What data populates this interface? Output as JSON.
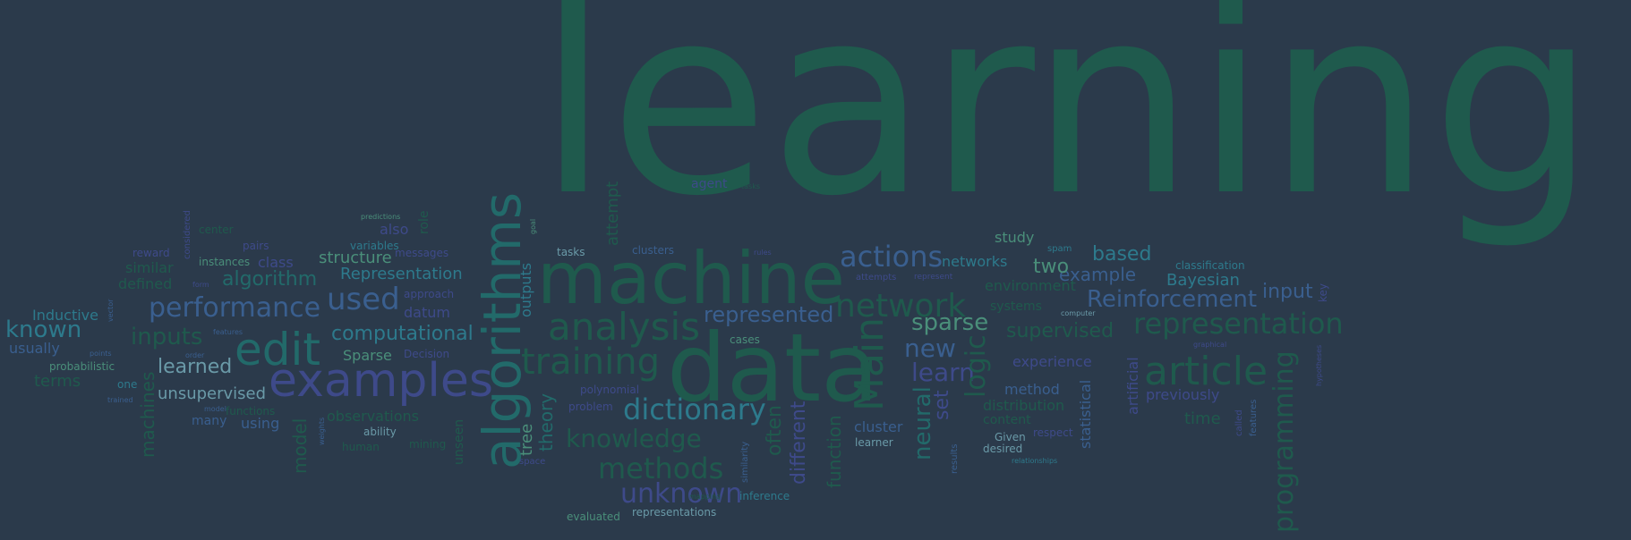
{
  "background_color": "#2b3a4b",
  "palette": {
    "green": "#1f5a4d",
    "blue_green": "#226a6a",
    "teal": "#2d7a8c",
    "blue": "#3a5f8f",
    "indigo": "#3e4a8a",
    "mint": "#4a8f7a",
    "light": "#6a9aa8"
  },
  "words": [
    {
      "text": "learning"
    },
    {
      "text": "machine"
    },
    {
      "text": "data"
    },
    {
      "text": "algorithms"
    },
    {
      "text": "examples"
    },
    {
      "text": "edit"
    },
    {
      "text": "performance"
    },
    {
      "text": "used"
    },
    {
      "text": "analysis"
    },
    {
      "text": "training"
    },
    {
      "text": "network"
    },
    {
      "text": "actions"
    },
    {
      "text": "article"
    },
    {
      "text": "representation"
    },
    {
      "text": "Reinforcement"
    },
    {
      "text": "Main"
    },
    {
      "text": "dictionary"
    },
    {
      "text": "methods"
    },
    {
      "text": "unknown"
    },
    {
      "text": "knowledge"
    },
    {
      "text": "programming"
    },
    {
      "text": "sparse"
    },
    {
      "text": "new"
    },
    {
      "text": "learn"
    },
    {
      "text": "represented"
    },
    {
      "text": "computational"
    },
    {
      "text": "inputs"
    },
    {
      "text": "known"
    },
    {
      "text": "algorithm"
    },
    {
      "text": "learned"
    },
    {
      "text": "supervised"
    },
    {
      "text": "based"
    },
    {
      "text": "example"
    },
    {
      "text": "two"
    },
    {
      "text": "input"
    },
    {
      "text": "Bayesian"
    },
    {
      "text": "Representation"
    },
    {
      "text": "structure"
    },
    {
      "text": "unsupervised"
    },
    {
      "text": "logic"
    },
    {
      "text": "neural"
    },
    {
      "text": "set"
    },
    {
      "text": "different"
    },
    {
      "text": "often"
    },
    {
      "text": "function"
    },
    {
      "text": "model"
    },
    {
      "text": "machines"
    },
    {
      "text": "theory"
    },
    {
      "text": "tree"
    },
    {
      "text": "outputs"
    },
    {
      "text": "attempt"
    },
    {
      "text": "study"
    },
    {
      "text": "networks"
    },
    {
      "text": "environment"
    },
    {
      "text": "systems"
    },
    {
      "text": "experience"
    },
    {
      "text": "method"
    },
    {
      "text": "distribution"
    },
    {
      "text": "cluster"
    },
    {
      "text": "statistical"
    },
    {
      "text": "artificial"
    },
    {
      "text": "previously"
    },
    {
      "text": "time"
    },
    {
      "text": "classification"
    },
    {
      "text": "Inductive"
    },
    {
      "text": "usually"
    },
    {
      "text": "probabilistic"
    },
    {
      "text": "terms"
    },
    {
      "text": "many"
    },
    {
      "text": "using"
    },
    {
      "text": "observations"
    },
    {
      "text": "Sparse"
    },
    {
      "text": "datum"
    },
    {
      "text": "also"
    },
    {
      "text": "instances"
    },
    {
      "text": "class"
    },
    {
      "text": "similar"
    },
    {
      "text": "defined"
    },
    {
      "text": "reward"
    },
    {
      "text": "pairs"
    },
    {
      "text": "variables"
    },
    {
      "text": "messages"
    },
    {
      "text": "agent"
    },
    {
      "text": "tasks"
    },
    {
      "text": "clusters"
    },
    {
      "text": "represent"
    },
    {
      "text": "attempts"
    },
    {
      "text": "polynomial"
    },
    {
      "text": "problem"
    },
    {
      "text": "evaluated"
    },
    {
      "text": "representations"
    },
    {
      "text": "inference"
    },
    {
      "text": "learner"
    },
    {
      "text": "desired"
    },
    {
      "text": "Given"
    },
    {
      "text": "relationships"
    },
    {
      "text": "results"
    },
    {
      "text": "respect"
    },
    {
      "text": "content"
    },
    {
      "text": "features"
    },
    {
      "text": "called"
    },
    {
      "text": "key"
    },
    {
      "text": "hypotheses"
    },
    {
      "text": "graphical"
    },
    {
      "text": "computer"
    },
    {
      "text": "spam"
    },
    {
      "text": "similarity"
    },
    {
      "text": "unseen"
    },
    {
      "text": "human"
    },
    {
      "text": "mining"
    },
    {
      "text": "ability"
    },
    {
      "text": "one"
    },
    {
      "text": "trained"
    },
    {
      "text": "cases"
    },
    {
      "text": "role"
    },
    {
      "text": "considered"
    },
    {
      "text": "predictions"
    },
    {
      "text": "approach"
    },
    {
      "text": "Decision"
    },
    {
      "text": "functions"
    },
    {
      "text": "model"
    },
    {
      "text": "order"
    },
    {
      "text": "vector"
    },
    {
      "text": "tasks"
    },
    {
      "text": "features"
    },
    {
      "text": "center"
    },
    {
      "text": "points"
    },
    {
      "text": "weights"
    },
    {
      "text": "space"
    },
    {
      "text": "form"
    },
    {
      "text": "rules"
    },
    {
      "text": "mapping"
    },
    {
      "text": "goal"
    }
  ]
}
